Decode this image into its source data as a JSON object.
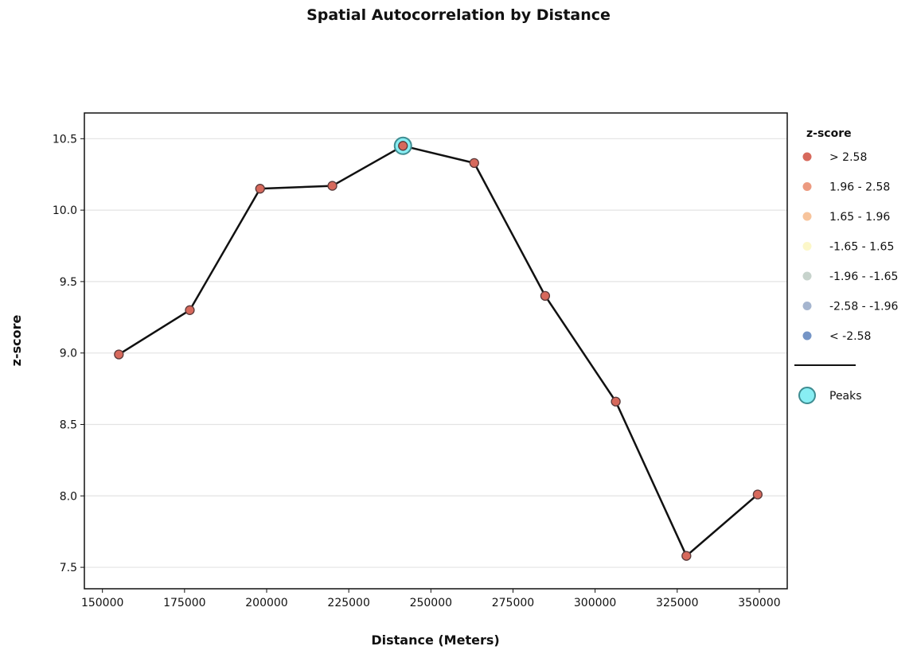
{
  "chart_data": {
    "type": "line",
    "title": "Spatial Autocorrelation by Distance",
    "xlabel": "Distance (Meters)",
    "ylabel": "z-score",
    "xlim": [
      144500,
      358500
    ],
    "ylim": [
      7.35,
      10.68
    ],
    "x_ticks": [
      150000,
      175000,
      200000,
      225000,
      250000,
      275000,
      300000,
      325000,
      350000
    ],
    "y_ticks": [
      7.5,
      8.0,
      8.5,
      9.0,
      9.5,
      10.0,
      10.5
    ],
    "y_tick_labels": [
      "7.5",
      "8.0",
      "8.5",
      "9.0",
      "9.5",
      "10.0",
      "10.5"
    ],
    "grid": "horizontal",
    "series": [
      {
        "x": [
          155000,
          176600,
          198000,
          220000,
          241500,
          263200,
          284800,
          306300,
          327800,
          349500
        ],
        "y": [
          8.99,
          9.3,
          10.15,
          10.17,
          10.45,
          10.33,
          9.4,
          8.66,
          7.58,
          8.01
        ],
        "line_color": "#111111",
        "marker_color": "#d7695c"
      }
    ],
    "peaks": [
      {
        "x": 241500,
        "y": 10.45
      }
    ],
    "legend": {
      "position": "right",
      "title": "z-score",
      "items": [
        {
          "label": "> 2.58",
          "color": "#d7695c"
        },
        {
          "label": "1.96 - 2.58",
          "color": "#ec9a80"
        },
        {
          "label": "1.65 - 1.96",
          "color": "#f7c49c"
        },
        {
          "label": "-1.65 - 1.65",
          "color": "#fcf7c9"
        },
        {
          "label": "-1.96 - -1.65",
          "color": "#c7d3cc"
        },
        {
          "label": "-2.58 - -1.96",
          "color": "#a5b5cf"
        },
        {
          "label": "< -2.58",
          "color": "#7595c6"
        }
      ],
      "peaks_label": "Peaks",
      "peaks_color": "#88eef3"
    }
  }
}
